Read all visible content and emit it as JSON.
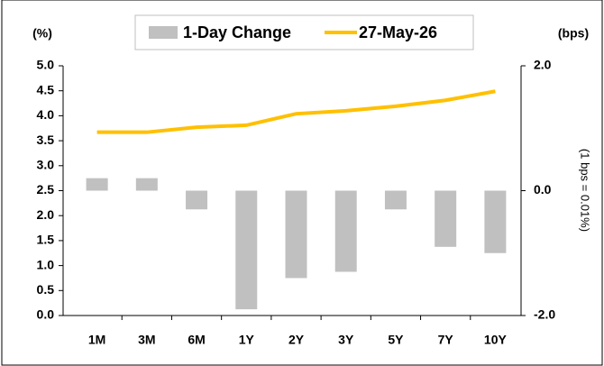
{
  "chart_data": {
    "type": "bar_line",
    "y_label": "(%)",
    "y2_label": "(bps)",
    "y2_note": "(1 bps = 0.01%)",
    "categories": [
      "1M",
      "3M",
      "6M",
      "1Y",
      "2Y",
      "3Y",
      "5Y",
      "7Y",
      "10Y"
    ],
    "series": [
      {
        "name": "1-Day Change",
        "type": "bar",
        "axis": "y2",
        "color": "#c0c0c0",
        "values": [
          0.2,
          0.2,
          -0.3,
          -1.9,
          -1.4,
          -1.3,
          -0.3,
          -0.9,
          -1.0
        ]
      },
      {
        "name": "27-May-26",
        "type": "line",
        "axis": "y",
        "color": "#ffc000",
        "values": [
          3.67,
          3.67,
          3.77,
          3.81,
          4.04,
          4.1,
          4.19,
          4.31,
          4.49
        ]
      }
    ],
    "ylim": [
      0,
      5
    ],
    "yticks": [
      {
        "value": 0,
        "label": "0.0"
      },
      0.5,
      {
        "value": 1,
        "label": "1.0"
      },
      1.5,
      {
        "value": 2,
        "label": "2.0"
      },
      2.5,
      {
        "value": 3,
        "label": "3.0"
      },
      3.5,
      {
        "value": 4,
        "label": "4.0"
      },
      4.5,
      {
        "value": 5,
        "label": "5.0"
      }
    ],
    "y2lim": [
      -2,
      2
    ],
    "y2ticks": [
      {
        "value": -2,
        "label": "-2.0"
      },
      {
        "value": 0,
        "label": "0.0"
      },
      {
        "value": 2,
        "label": "2.0"
      }
    ],
    "legend": "top"
  }
}
